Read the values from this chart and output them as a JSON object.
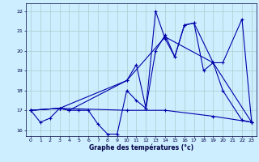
{
  "background_color": "#cceeff",
  "grid_color": "#aacccc",
  "line_color": "#0000aa",
  "xlabel": "Graphe des températures (°c)",
  "ylim": [
    15.7,
    22.4
  ],
  "xlim": [
    -0.5,
    23.5
  ],
  "yticks": [
    16,
    17,
    18,
    19,
    20,
    21,
    22
  ],
  "xticks": [
    0,
    1,
    2,
    3,
    4,
    5,
    6,
    7,
    8,
    9,
    10,
    11,
    12,
    13,
    14,
    15,
    16,
    17,
    18,
    19,
    20,
    21,
    22,
    23
  ],
  "series": [
    {
      "x": [
        0,
        1,
        2,
        3,
        4,
        5,
        6,
        7,
        8,
        9,
        10,
        11,
        12,
        13,
        14,
        15,
        16,
        17,
        18,
        19,
        20,
        22,
        23
      ],
      "y": [
        17.0,
        16.4,
        16.6,
        17.1,
        17.0,
        17.0,
        17.0,
        16.3,
        15.8,
        15.8,
        18.0,
        17.5,
        17.1,
        20.0,
        20.8,
        19.7,
        21.3,
        21.4,
        19.0,
        19.4,
        18.0,
        16.5,
        16.4
      ]
    },
    {
      "x": [
        0,
        3,
        4,
        10,
        11,
        12,
        13,
        14,
        15,
        16,
        17,
        19,
        20,
        22,
        23
      ],
      "y": [
        17.0,
        17.1,
        17.0,
        18.5,
        19.3,
        17.1,
        22.0,
        20.6,
        19.7,
        21.3,
        21.4,
        19.4,
        19.4,
        21.6,
        16.4
      ]
    },
    {
      "x": [
        0,
        3,
        10,
        14,
        19,
        23
      ],
      "y": [
        17.0,
        17.1,
        18.5,
        20.7,
        19.4,
        16.4
      ]
    },
    {
      "x": [
        0,
        3,
        10,
        14,
        19,
        23
      ],
      "y": [
        17.0,
        17.1,
        17.0,
        17.0,
        16.7,
        16.4
      ]
    }
  ]
}
